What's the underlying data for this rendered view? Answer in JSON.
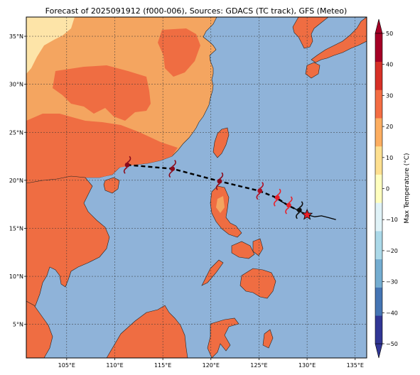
{
  "map": {
    "title": "Forecast of 2025091912 (f000-006), Sources: GDACS (TC track), GFS (Meteo)",
    "lon_range": [
      100.8,
      136.2
    ],
    "lat_range": [
      1.5,
      37.0
    ],
    "gridlines": true,
    "ocean_color": "#8fb3d9",
    "lon_ticks": [
      {
        "value": 105,
        "label": "105°E"
      },
      {
        "value": 110,
        "label": "110°E"
      },
      {
        "value": 115,
        "label": "115°E"
      },
      {
        "value": 120,
        "label": "120°E"
      },
      {
        "value": 125,
        "label": "125°E"
      },
      {
        "value": 130,
        "label": "130°E"
      },
      {
        "value": 135,
        "label": "135°E"
      }
    ],
    "lat_ticks": [
      {
        "value": 5,
        "label": "5°N"
      },
      {
        "value": 10,
        "label": "10°N"
      },
      {
        "value": 15,
        "label": "15°N"
      },
      {
        "value": 20,
        "label": "20°N"
      },
      {
        "value": 25,
        "label": "25°N"
      },
      {
        "value": 30,
        "label": "30°N"
      },
      {
        "value": 35,
        "label": "35°N"
      }
    ]
  },
  "track": {
    "observed": [
      [
        133.0,
        15.9
      ],
      [
        132.3,
        16.1
      ],
      [
        131.5,
        16.3
      ],
      [
        130.8,
        16.2
      ],
      [
        130.0,
        16.4
      ],
      [
        129.2,
        16.8
      ],
      [
        128.4,
        17.2
      ],
      [
        127.5,
        17.7
      ],
      [
        126.6,
        18.2
      ]
    ],
    "forecast": [
      [
        130.0,
        16.4
      ],
      [
        128.0,
        17.4
      ],
      [
        126.8,
        18.2
      ],
      [
        125.0,
        18.9
      ],
      [
        120.9,
        19.9
      ],
      [
        116.0,
        21.2
      ],
      [
        111.3,
        21.6
      ]
    ],
    "current_position": [
      130.0,
      16.4
    ],
    "storm_symbols": [
      {
        "lon": 129.2,
        "lat": 16.9,
        "color": "#111111"
      },
      {
        "lon": 128.1,
        "lat": 17.4,
        "color": "#e8202a"
      },
      {
        "lon": 126.9,
        "lat": 18.2,
        "color": "#e8202a"
      },
      {
        "lon": 125.1,
        "lat": 18.9,
        "color": "#b01024"
      },
      {
        "lon": 120.9,
        "lat": 19.9,
        "color": "#8b0a1c"
      },
      {
        "lon": 116.0,
        "lat": 21.2,
        "color": "#8b0a1c"
      },
      {
        "lon": 111.3,
        "lat": 21.6,
        "color": "#8b0a1c"
      }
    ]
  },
  "colorbar": {
    "label": "Max Temperature (°C)",
    "min": -50,
    "max": 50,
    "tick_labels": [
      "−50",
      "−40",
      "−30",
      "−20",
      "−10",
      "0",
      "10",
      "20",
      "30",
      "40",
      "50"
    ],
    "colors": [
      "#313695",
      "#4575b4",
      "#74add1",
      "#abd9e9",
      "#e0f3f8",
      "#ffffbf",
      "#fee090",
      "#fdae61",
      "#f46d43",
      "#d73027",
      "#a50026"
    ]
  }
}
